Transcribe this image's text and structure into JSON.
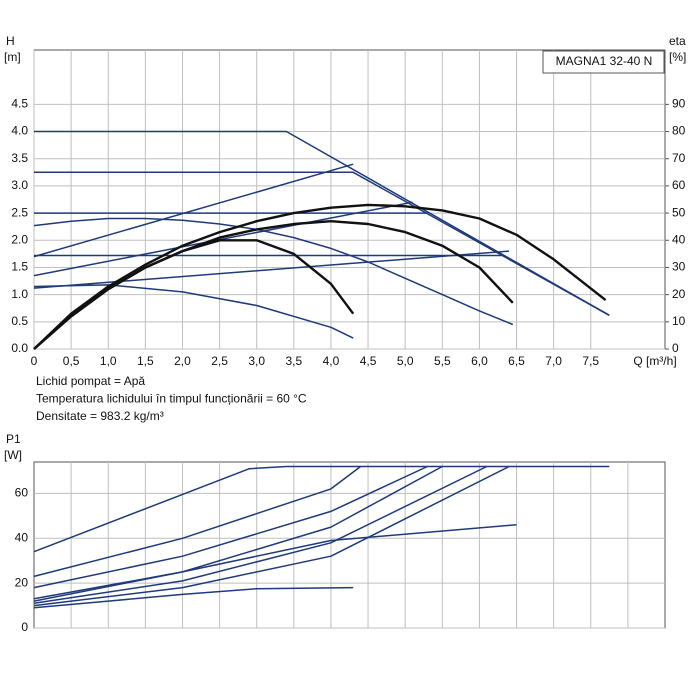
{
  "chart_data": [
    {
      "type": "line",
      "product": "MAGNA1 32-40 N",
      "ylabel": "H",
      "yunit": "[m]",
      "y2label": "eta",
      "y2unit": "[%]",
      "xlabel": "Q [m³/h]",
      "annotations": [
        "Lichid pompat = Apă",
        "Temperatura lichidului în timpul funcționării = 60 °C",
        "Densitate = 983.2 kg/m³"
      ],
      "xlim": [
        0,
        8.5
      ],
      "xticks": [
        0,
        {
          "value": 0.5,
          "label": "0,5"
        },
        {
          "value": 1,
          "label": "1,0"
        },
        {
          "value": 1.5,
          "label": "1,5"
        },
        {
          "value": 2,
          "label": "2,0"
        },
        {
          "value": 2.5,
          "label": "2,5"
        },
        {
          "value": 3,
          "label": "3,0"
        },
        {
          "value": 3.5,
          "label": "3,5"
        },
        {
          "value": 4,
          "label": "4,0"
        },
        {
          "value": 4.5,
          "label": "4,5"
        },
        {
          "value": 5,
          "label": "5,0"
        },
        {
          "value": 5.5,
          "label": "5,5"
        },
        {
          "value": 6,
          "label": "6,0"
        },
        {
          "value": 6.5,
          "label": "6,5"
        },
        {
          "value": 7,
          "label": "7,0"
        },
        {
          "value": 7.5,
          "label": "7,5"
        }
      ],
      "ylim": [
        0,
        5.5
      ],
      "yticks": [
        {
          "value": 0,
          "label": "0.0"
        },
        {
          "value": 0.5,
          "label": "0.5"
        },
        {
          "value": 1,
          "label": "1.0"
        },
        {
          "value": 1.5,
          "label": "1.5"
        },
        {
          "value": 2,
          "label": "2.0"
        },
        {
          "value": 2.5,
          "label": "2.5"
        },
        {
          "value": 3,
          "label": "3.0"
        },
        {
          "value": 3.5,
          "label": "3.5"
        },
        {
          "value": 4,
          "label": "4.0"
        },
        {
          "value": 4.5,
          "label": "4.5"
        }
      ],
      "y2lim": [
        0,
        110
      ],
      "y2ticks": [
        0,
        10,
        20,
        30,
        40,
        50,
        60,
        70,
        80,
        90
      ],
      "grid": true,
      "series": [
        {
          "color": "#1f3a7a",
          "x": [
            0,
            3.4,
            7.75
          ],
          "values": [
            4.0,
            4.0,
            0.62
          ]
        },
        {
          "color": "#1f3a7a",
          "x": [
            0,
            4.3,
            7.75
          ],
          "values": [
            3.25,
            3.25,
            0.62
          ]
        },
        {
          "color": "#1f3a7a",
          "x": [
            0,
            5.3
          ],
          "values": [
            2.5,
            2.5
          ]
        },
        {
          "color": "#1f3a7a",
          "x": [
            0,
            6.3
          ],
          "values": [
            1.72,
            1.72
          ]
        },
        {
          "color": "#1f3a7a",
          "x": [
            0,
            4.3
          ],
          "values": [
            1.7,
            3.4
          ]
        },
        {
          "color": "#1f3a7a",
          "x": [
            0,
            5.1
          ],
          "values": [
            1.35,
            2.7
          ]
        },
        {
          "color": "#1f3a7a",
          "x": [
            0,
            6.4
          ],
          "values": [
            1.12,
            1.8
          ]
        },
        {
          "color": "#1f3a7a",
          "x": [
            0,
            0.5,
            1,
            1.5,
            2,
            2.5,
            3,
            3.5,
            4,
            4.5,
            5,
            5.5,
            6,
            6.45
          ],
          "values": [
            2.27,
            2.35,
            2.4,
            2.4,
            2.37,
            2.3,
            2.2,
            2.05,
            1.85,
            1.6,
            1.3,
            1.0,
            0.7,
            0.45
          ]
        },
        {
          "color": "#1f3a7a",
          "x": [
            0,
            1,
            2,
            3,
            4,
            4.3
          ],
          "values": [
            1.15,
            1.18,
            1.05,
            0.8,
            0.4,
            0.2
          ]
        },
        {
          "color": "#111111",
          "axis": "y2",
          "x": [
            0,
            0.5,
            1,
            1.5,
            2,
            2.5,
            3,
            3.5,
            4,
            4.5,
            5,
            5.5,
            6,
            6.5,
            7,
            7.7
          ],
          "values": [
            0,
            13,
            23,
            31,
            38,
            43,
            47,
            50,
            52,
            53,
            52.5,
            51,
            48,
            42,
            33,
            18
          ]
        },
        {
          "color": "#111111",
          "axis": "y2",
          "x": [
            0,
            0.5,
            1,
            1.5,
            2,
            2.5,
            3,
            3.5,
            4,
            4.5,
            5,
            5.5,
            6,
            6.45
          ],
          "values": [
            0,
            12,
            22,
            30,
            36,
            41,
            44,
            46,
            47,
            46,
            43,
            38,
            30,
            17
          ]
        },
        {
          "color": "#111111",
          "axis": "y2",
          "x": [
            0,
            0.5,
            1,
            1.5,
            2,
            2.5,
            3,
            3.5,
            4,
            4.3
          ],
          "values": [
            0,
            12,
            22,
            30,
            36,
            40,
            40,
            35,
            24,
            13
          ]
        }
      ]
    },
    {
      "type": "line",
      "ylabel": "P1",
      "yunit": "[W]",
      "xlim": [
        0,
        8.5
      ],
      "xticks": [
        0.5,
        1,
        1.5,
        2,
        2.5,
        3,
        3.5,
        4,
        4.5,
        5,
        5.5,
        6,
        6.5,
        7,
        7.5,
        8
      ],
      "xtick_labels": false,
      "ylim": [
        0,
        74
      ],
      "yticks": [
        0,
        20,
        40,
        60
      ],
      "grid": true,
      "series": [
        {
          "color": "#1f3a7a",
          "x": [
            0,
            2.9,
            3.4,
            7.75
          ],
          "values": [
            34,
            71,
            72,
            72
          ]
        },
        {
          "color": "#1f3a7a",
          "x": [
            0,
            2,
            4,
            4.4
          ],
          "values": [
            23,
            40,
            62,
            72
          ]
        },
        {
          "color": "#1f3a7a",
          "x": [
            0,
            2,
            4,
            5.3
          ],
          "values": [
            18,
            32,
            52,
            72
          ]
        },
        {
          "color": "#1f3a7a",
          "x": [
            0,
            2,
            4,
            5.5
          ],
          "values": [
            13,
            25,
            45,
            72
          ]
        },
        {
          "color": "#1f3a7a",
          "x": [
            0,
            2,
            4,
            6.1
          ],
          "values": [
            11,
            21,
            38,
            72
          ]
        },
        {
          "color": "#1f3a7a",
          "x": [
            0,
            2,
            4,
            6.4
          ],
          "values": [
            10,
            18,
            32,
            72
          ]
        },
        {
          "color": "#1f3a7a",
          "x": [
            0,
            2,
            4,
            6.5
          ],
          "values": [
            12,
            25,
            39,
            46
          ]
        },
        {
          "color": "#1f3a7a",
          "x": [
            0,
            1,
            2,
            3,
            4.3
          ],
          "values": [
            9,
            12,
            15,
            17.5,
            18
          ]
        }
      ]
    }
  ]
}
